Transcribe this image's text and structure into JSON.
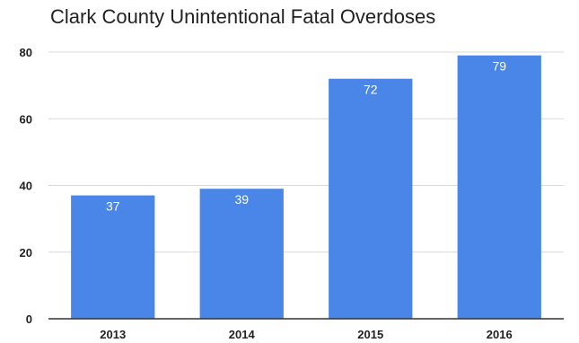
{
  "chart_data": {
    "type": "bar",
    "title": "Clark County Unintentional Fatal Overdoses",
    "categories": [
      "2013",
      "2014",
      "2015",
      "2016"
    ],
    "values": [
      37,
      39,
      72,
      79
    ],
    "data_labels": [
      "37",
      "39",
      "72",
      "79"
    ],
    "y_ticks": [
      "0",
      "20",
      "40",
      "60",
      "80"
    ],
    "xlabel": "",
    "ylabel": "",
    "ylim": [
      0,
      80
    ],
    "grid": true,
    "legend": "none",
    "bar_color": "#4a86e8",
    "data_label_color": "#ffffff"
  }
}
